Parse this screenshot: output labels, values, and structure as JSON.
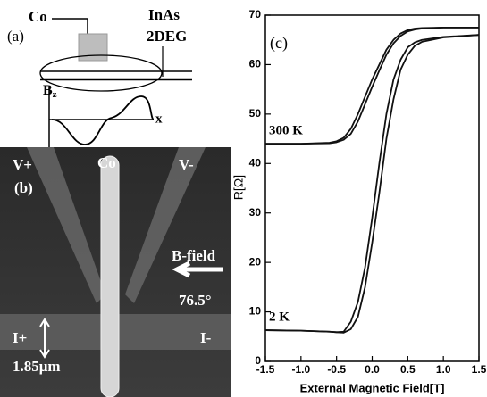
{
  "panel_a": {
    "label": "(a)",
    "co": "Co",
    "inas": "InAs",
    "twodeg": "2DEG",
    "b": "B",
    "b_sub": "z",
    "x_axis": "x"
  },
  "panel_b": {
    "label": "(b)",
    "v_plus": "V+",
    "co": "Co",
    "v_minus": "V-",
    "b_field": "B-field",
    "angle": "76.5°",
    "i_plus": "I+",
    "i_minus": "I-",
    "width": "1.85μm"
  },
  "chart_data": {
    "type": "line",
    "label": "(c)",
    "xlabel": "External Magnetic Field[T]",
    "ylabel": "R[Ω]",
    "xlim": [
      -1.5,
      1.5
    ],
    "ylim": [
      0,
      70
    ],
    "xticks": [
      -1.5,
      {
        "value": -1,
        "label": "-1.0"
      },
      -0.5,
      {
        "value": 0,
        "label": "0.0"
      },
      0.5,
      {
        "value": 1,
        "label": "1.0"
      },
      1.5
    ],
    "yticks": [
      0,
      10,
      20,
      30,
      40,
      50,
      60,
      70
    ],
    "x": [
      -1.5,
      -1.0,
      -0.6,
      -0.5,
      -0.4,
      -0.3,
      -0.2,
      -0.1,
      0,
      0.1,
      0.2,
      0.3,
      0.4,
      0.5,
      0.6,
      0.7,
      1.0,
      1.5
    ],
    "series": [
      {
        "name": "300 K",
        "color": "#111111",
        "values": [
          44,
          44,
          44.2,
          44.5,
          45.2,
          47,
          50,
          53.5,
          57,
          60,
          63,
          65,
          66.3,
          67,
          67.3,
          67.4,
          67.5,
          67.5
        ]
      },
      {
        "color": "#111111",
        "values": [
          44,
          44,
          44.1,
          44.3,
          44.8,
          46,
          48.5,
          52,
          55.5,
          58.8,
          62,
          64.3,
          65.8,
          66.7,
          67.1,
          67.3,
          67.5,
          67.5
        ]
      },
      {
        "name": "2 K",
        "color": "#111111",
        "values": [
          6.3,
          6.2,
          6.0,
          5.9,
          6.0,
          8,
          12,
          19,
          29,
          40,
          50,
          57,
          61,
          63.5,
          64.5,
          65,
          65.6,
          66
        ]
      },
      {
        "color": "#111111",
        "values": [
          6.3,
          6.2,
          6.0,
          5.9,
          5.8,
          6.5,
          9,
          15,
          24,
          34,
          45,
          53,
          59,
          62,
          63.8,
          64.6,
          65.5,
          66
        ]
      }
    ]
  }
}
